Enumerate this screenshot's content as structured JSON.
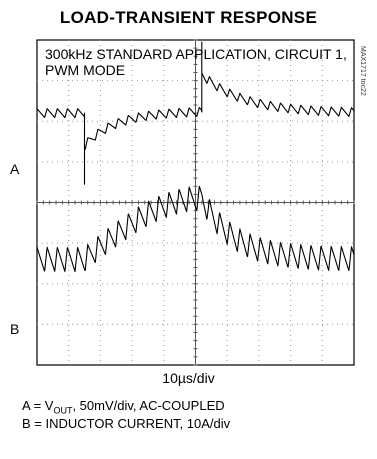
{
  "chart_data": {
    "type": "line",
    "title": "LOAD-TRANSIENT RESPONSE",
    "annotation_lines": [
      "300kHz STANDARD APPLICATION, CIRCUIT 1,",
      "PWM MODE"
    ],
    "side_note": "MAX1717 toc22",
    "timebase": "10µs/div",
    "grid": true,
    "divisions": {
      "x": 10,
      "y": 8
    },
    "x_range_div": [
      0,
      10
    ],
    "channels": [
      {
        "label": "A",
        "legend_prefix": "A = V",
        "legend_sub": "OUT",
        "legend_suffix": ", 50mV/div, AC-COUPLED",
        "baseline_div": 1.8,
        "ripple_pp_div": 0.22,
        "ripple_period_div": 0.32,
        "events": [
          {
            "t_div": 1.5,
            "kind": "load_step_up",
            "undershoot_div": -1.75
          },
          {
            "t_div": 5.2,
            "kind": "load_step_down",
            "overshoot_div": 1.75
          }
        ]
      },
      {
        "label": "B",
        "legend_prefix": "B = INDUCTOR CURRENT, 10A/div",
        "baseline_div": 5.4,
        "ripple_pp_div": 0.6,
        "ripple_period_div": 0.32,
        "events": [
          {
            "t_div": 1.5,
            "kind": "ramp_up_to",
            "level_div": 3.9
          },
          {
            "t_div": 5.2,
            "kind": "ramp_down_to",
            "level_div": 5.4
          }
        ]
      }
    ]
  }
}
